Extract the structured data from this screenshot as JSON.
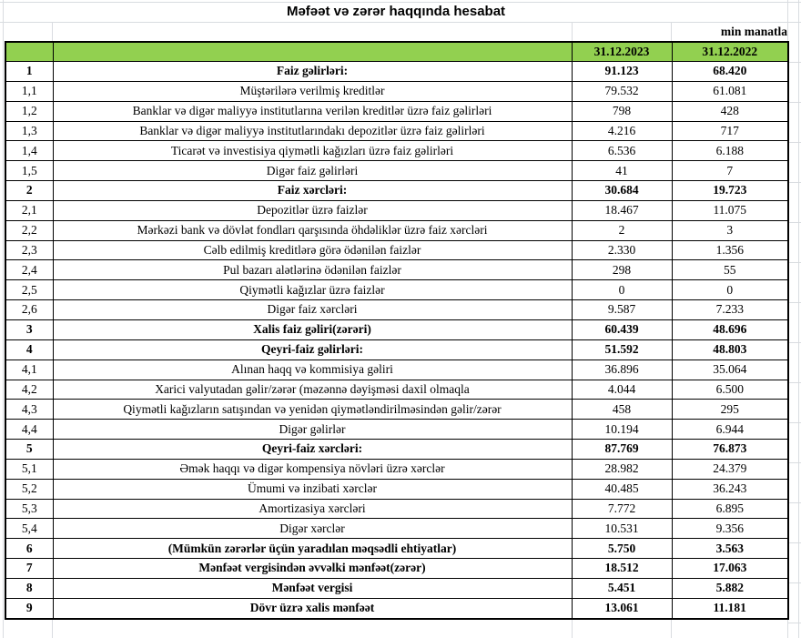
{
  "title": "Məfəət və zərər haqqında hesabat",
  "unit_note": "min manatla",
  "columns": [
    "31.12.2023",
    "31.12.2022"
  ],
  "rows": [
    {
      "no": "1",
      "label": "Faiz gəlirləri:",
      "v2023": "91.123",
      "v2022": "68.420",
      "bold": true
    },
    {
      "no": "1,1",
      "label": "Müştərilərə verilmiş kreditlər",
      "v2023": "79.532",
      "v2022": "61.081",
      "bold": false
    },
    {
      "no": "1,2",
      "label": "Banklar və digər maliyyə institutlarına verilən kreditlər üzrə faiz gəlirləri",
      "v2023": "798",
      "v2022": "428",
      "bold": false
    },
    {
      "no": "1,3",
      "label": "Banklar və digər maliyyə institutlarındakı depozitlər üzrə faiz gəlirləri",
      "v2023": "4.216",
      "v2022": "717",
      "bold": false
    },
    {
      "no": "1,4",
      "label": "Ticarət və investisiya qiymətli kağızları üzrə faiz gəlirləri",
      "v2023": "6.536",
      "v2022": "6.188",
      "bold": false
    },
    {
      "no": "1,5",
      "label": "Digər faiz gəlirləri",
      "v2023": "41",
      "v2022": "7",
      "bold": false
    },
    {
      "no": "2",
      "label": "Faiz xərcləri:",
      "v2023": "30.684",
      "v2022": "19.723",
      "bold": true
    },
    {
      "no": "2,1",
      "label": "Depozitlər üzrə faizlər",
      "v2023": "18.467",
      "v2022": "11.075",
      "bold": false
    },
    {
      "no": "2,2",
      "label": "Mərkəzi bank və dövlət fondları qarşısında öhdəliklər üzrə faiz xərcləri",
      "v2023": "2",
      "v2022": "3",
      "bold": false
    },
    {
      "no": "2,3",
      "label": "Cəlb edilmiş kreditlərə görə ödənilən faizlər",
      "v2023": "2.330",
      "v2022": "1.356",
      "bold": false
    },
    {
      "no": "2,4",
      "label": "Pul bazarı alətlərinə ödənilən faizlər",
      "v2023": "298",
      "v2022": "55",
      "bold": false
    },
    {
      "no": "2,5",
      "label": "Qiymətli kağızlar üzrə faizlər",
      "v2023": "0",
      "v2022": "0",
      "bold": false
    },
    {
      "no": "2,6",
      "label": "Digər faiz xərcləri",
      "v2023": "9.587",
      "v2022": "7.233",
      "bold": false
    },
    {
      "no": "3",
      "label": "Xalis faiz gəliri(zərəri)",
      "v2023": "60.439",
      "v2022": "48.696",
      "bold": true
    },
    {
      "no": "4",
      "label": "Qeyri-faiz gəlirləri:",
      "v2023": "51.592",
      "v2022": "48.803",
      "bold": true
    },
    {
      "no": "4,1",
      "label": "Alınan haqq və kommisiya gəliri",
      "v2023": "36.896",
      "v2022": "35.064",
      "bold": false
    },
    {
      "no": "4,2",
      "label": "Xarici valyutadan gəlir/zərər (məzənnə dəyişməsi daxil olmaqla",
      "v2023": "4.044",
      "v2022": "6.500",
      "bold": false
    },
    {
      "no": "4,3",
      "label": "Qiymətli kağızların satışından və yenidən qiymətləndirilməsindən gəlir/zərər",
      "v2023": "458",
      "v2022": "295",
      "bold": false
    },
    {
      "no": "4,4",
      "label": "Digər gəlirlər",
      "v2023": "10.194",
      "v2022": "6.944",
      "bold": false
    },
    {
      "no": "5",
      "label": "Qeyri-faiz xərcləri:",
      "v2023": "87.769",
      "v2022": "76.873",
      "bold": true
    },
    {
      "no": "5,1",
      "label": "Əmək haqqı və digər kompensiya növləri üzrə xərclər",
      "v2023": "28.982",
      "v2022": "24.379",
      "bold": false
    },
    {
      "no": "5,2",
      "label": "Ümumi və inzibati xərclər",
      "v2023": "40.485",
      "v2022": "36.243",
      "bold": false
    },
    {
      "no": "5,3",
      "label": "Amortizasiya xərcləri",
      "v2023": "7.772",
      "v2022": "6.895",
      "bold": false
    },
    {
      "no": "5,4",
      "label": "Digər xərclər",
      "v2023": "10.531",
      "v2022": "9.356",
      "bold": false
    },
    {
      "no": "6",
      "label": "(Mümkün zərərlər üçün yaradılan məqsədli ehtiyatlar)",
      "v2023": "5.750",
      "v2022": "3.563",
      "bold": true
    },
    {
      "no": "7",
      "label": "Mənfəət vergisindən əvvəlki mənfəət(zərər)",
      "v2023": "18.512",
      "v2022": "17.063",
      "bold": true
    },
    {
      "no": "8",
      "label": "Mənfəət vergisi",
      "v2023": "5.451",
      "v2022": "5.882",
      "bold": true
    },
    {
      "no": "9",
      "label": "Dövr üzrə xalis mənfəət",
      "v2023": "13.061",
      "v2022": "11.181",
      "bold": true
    }
  ],
  "colors": {
    "header_green": "#92D050",
    "table_border": "#000000",
    "gridline": "#D9DCE0"
  }
}
